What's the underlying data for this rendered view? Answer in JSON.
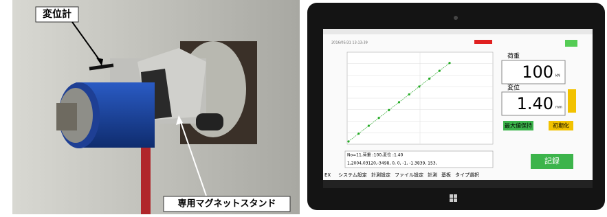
{
  "photo": {
    "labels": [
      "変位計",
      "専用マグネットスタンド"
    ]
  },
  "tablet": {
    "date": "2016/05/31 13:13:39",
    "plot": {
      "x": [
        0,
        0.14,
        0.28,
        0.42,
        0.56,
        0.7,
        0.84,
        0.98,
        1.12,
        1.26,
        1.4
      ],
      "y": [
        0,
        10,
        20,
        30,
        40,
        50,
        60,
        70,
        80,
        90,
        100
      ],
      "xlim": [
        0,
        2
      ],
      "ylim": [
        0,
        112
      ]
    },
    "load": {
      "label": "荷重",
      "value": "100",
      "unit": "kN"
    },
    "disp": {
      "label": "変位",
      "value": "1.40",
      "unit": "mm"
    },
    "buttons": [
      "最大値保持",
      "初期化",
      "記録"
    ],
    "log": [
      "No=11,荷重 :100,変位 :1.40",
      "1,2004,03120,-3498, 0, 0, -1, -1.3839, 153,"
    ],
    "menu": [
      "EX",
      "システム設定",
      "計測設定",
      "ファイル設定",
      "計測",
      "基板",
      "タイプ選択"
    ]
  }
}
